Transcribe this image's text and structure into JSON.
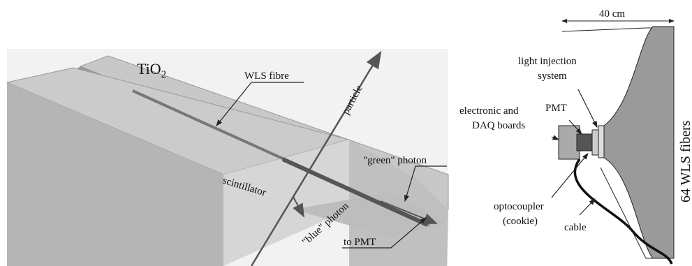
{
  "left_panel": {
    "labels": {
      "tio2": {
        "text": "TiO",
        "subscript": "2"
      },
      "wls_fibre": "WLS fibre",
      "particle": "particle",
      "green_photon": "\"green\" photon",
      "scintillator": "scintillator",
      "blue_photon": "\"blue\" photon",
      "to_pmt": "to PMT"
    }
  },
  "right_panel": {
    "labels": {
      "width": "40 cm",
      "light_injection": [
        "light injection",
        "system"
      ],
      "pmt": "PMT",
      "electronic": [
        "electronic and",
        "DAQ boards"
      ],
      "fibers": "64 WLS fibers",
      "optocoupler": [
        "optocoupler",
        "(cookie)"
      ],
      "cable": "cable"
    }
  }
}
